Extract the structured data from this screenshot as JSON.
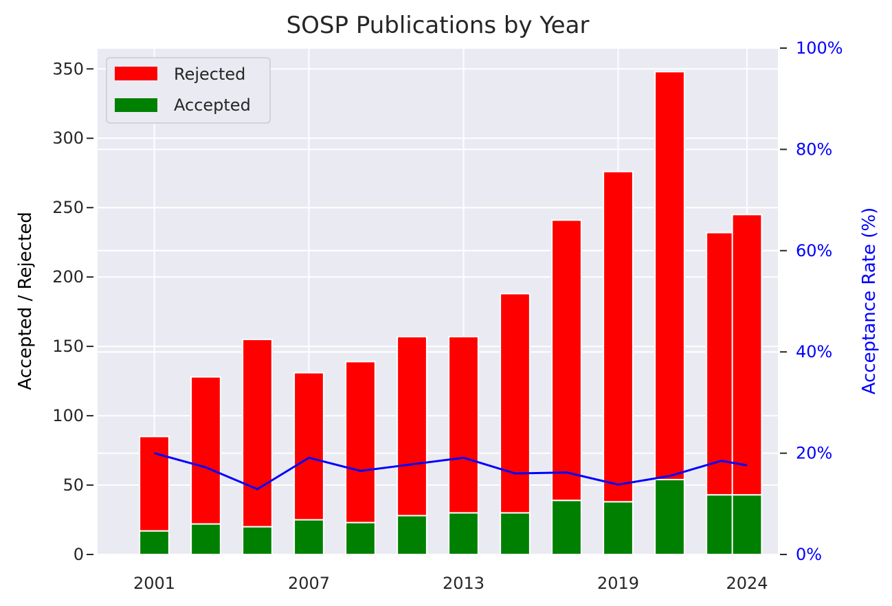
{
  "chart_data": {
    "type": "bar",
    "title": "SOSP Publications by Year",
    "ylabel": "Accepted / Rejected",
    "y2label": "Acceptance Rate (%)",
    "x": [
      2001,
      2003,
      2005,
      2007,
      2009,
      2011,
      2013,
      2015,
      2017,
      2019,
      2021,
      2023,
      2024
    ],
    "xticks": [
      2001,
      2007,
      2013,
      2019,
      2024
    ],
    "xlim": [
      1998.8,
      2025.2
    ],
    "ylim": [
      0,
      365
    ],
    "yticks": [
      0,
      50,
      100,
      150,
      200,
      250,
      300,
      350
    ],
    "y2lim": [
      0,
      100
    ],
    "y2ticks": [
      "0%",
      "20%",
      "40%",
      "60%",
      "80%",
      "100%"
    ],
    "stacked": true,
    "series": [
      {
        "name": "Accepted",
        "color": "#008000",
        "values": [
          17,
          22,
          20,
          25,
          23,
          28,
          30,
          30,
          39,
          38,
          54,
          43,
          43
        ]
      },
      {
        "name": "Rejected",
        "color": "#ff0000",
        "values": [
          68,
          106,
          135,
          106,
          116,
          129,
          127,
          158,
          202,
          238,
          294,
          189,
          202
        ]
      }
    ],
    "line": {
      "color": "#0000ff",
      "values": [
        20.0,
        17.2,
        12.9,
        19.1,
        16.5,
        17.8,
        19.1,
        16.0,
        16.2,
        13.8,
        15.5,
        18.5,
        17.6
      ]
    },
    "legend": {
      "position": "top-left",
      "entries": [
        "Rejected",
        "Accepted"
      ]
    },
    "grid": true
  }
}
